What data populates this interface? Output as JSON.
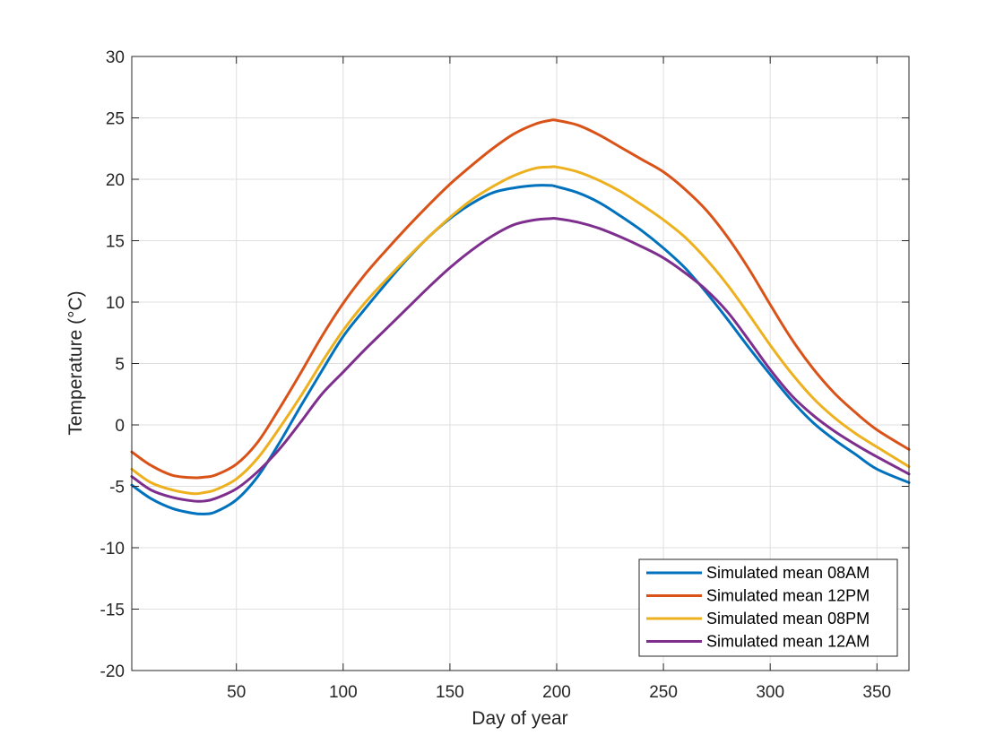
{
  "chart_data": {
    "type": "line",
    "title": "",
    "xlabel": "Day of year",
    "ylabel": "Temperature (°C)",
    "xlim": [
      1,
      365
    ],
    "ylim": [
      -20,
      30
    ],
    "xticks": [
      50,
      100,
      150,
      200,
      250,
      300,
      350
    ],
    "yticks": [
      -20,
      -15,
      -10,
      -5,
      0,
      5,
      10,
      15,
      20,
      25,
      30
    ],
    "grid": true,
    "legend_position": "bottom-right",
    "x": [
      1,
      10,
      20,
      30,
      35,
      40,
      50,
      60,
      70,
      80,
      90,
      100,
      110,
      120,
      130,
      140,
      150,
      160,
      170,
      180,
      190,
      197,
      200,
      210,
      220,
      230,
      240,
      250,
      260,
      270,
      280,
      290,
      300,
      310,
      320,
      330,
      340,
      350,
      365
    ],
    "series": [
      {
        "name": "Simulated mean 08AM",
        "color": "#0072BD",
        "values": [
          -4.9,
          -6.0,
          -6.8,
          -7.2,
          -7.25,
          -7.1,
          -6.1,
          -4.2,
          -1.5,
          1.5,
          4.4,
          7.2,
          9.4,
          11.5,
          13.5,
          15.3,
          16.8,
          18.0,
          18.9,
          19.3,
          19.5,
          19.5,
          19.4,
          18.9,
          18.1,
          17.0,
          15.8,
          14.4,
          12.8,
          10.8,
          8.6,
          6.3,
          4.1,
          2.0,
          0.2,
          -1.2,
          -2.4,
          -3.6,
          -4.7
        ]
      },
      {
        "name": "Simulated mean 12PM",
        "color": "#D95319",
        "values": [
          -2.2,
          -3.3,
          -4.1,
          -4.3,
          -4.25,
          -4.1,
          -3.2,
          -1.4,
          1.3,
          4.2,
          7.2,
          9.9,
          12.2,
          14.2,
          16.1,
          17.9,
          19.6,
          21.1,
          22.5,
          23.7,
          24.5,
          24.8,
          24.8,
          24.4,
          23.6,
          22.6,
          21.6,
          20.6,
          19.2,
          17.5,
          15.3,
          12.7,
          9.8,
          7.0,
          4.6,
          2.6,
          1.0,
          -0.4,
          -2.0
        ]
      },
      {
        "name": "Simulated mean 08PM",
        "color": "#EDB120",
        "values": [
          -3.6,
          -4.7,
          -5.3,
          -5.6,
          -5.5,
          -5.3,
          -4.4,
          -2.7,
          -0.3,
          2.3,
          5.1,
          7.7,
          9.9,
          11.8,
          13.6,
          15.3,
          16.9,
          18.3,
          19.4,
          20.3,
          20.9,
          21.0,
          21.0,
          20.6,
          19.9,
          19.0,
          17.9,
          16.7,
          15.3,
          13.5,
          11.4,
          9.0,
          6.5,
          4.2,
          2.2,
          0.6,
          -0.7,
          -1.8,
          -3.4
        ]
      },
      {
        "name": "Simulated mean 12AM",
        "color": "#7E2F8E",
        "values": [
          -4.2,
          -5.3,
          -5.9,
          -6.2,
          -6.2,
          -6.0,
          -5.2,
          -3.8,
          -2.0,
          0.2,
          2.5,
          4.3,
          6.1,
          7.8,
          9.5,
          11.2,
          12.8,
          14.2,
          15.4,
          16.3,
          16.7,
          16.8,
          16.8,
          16.5,
          16.0,
          15.3,
          14.5,
          13.6,
          12.4,
          11.0,
          9.2,
          6.9,
          4.5,
          2.4,
          0.8,
          -0.5,
          -1.6,
          -2.6,
          -4.0
        ]
      }
    ]
  }
}
